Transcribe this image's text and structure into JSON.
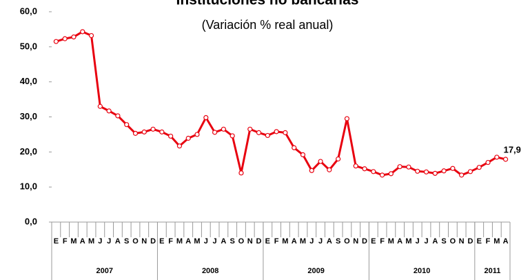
{
  "chart_data": {
    "type": "line",
    "title": "Instituciones no bancarias",
    "subtitle": "(Variación % real anual)",
    "categories": [
      "E",
      "F",
      "M",
      "A",
      "M",
      "J",
      "J",
      "A",
      "S",
      "O",
      "N",
      "D",
      "E",
      "F",
      "M",
      "A",
      "M",
      "J",
      "J",
      "A",
      "S",
      "O",
      "N",
      "D",
      "E",
      "F",
      "M",
      "A",
      "M",
      "J",
      "J",
      "A",
      "S",
      "O",
      "N",
      "D",
      "E",
      "F",
      "M",
      "A",
      "M",
      "J",
      "J",
      "A",
      "S",
      "O",
      "N",
      "D",
      "E",
      "F",
      "M",
      "A"
    ],
    "x_groups": [
      {
        "label": "2007",
        "span": 12
      },
      {
        "label": "2008",
        "span": 12
      },
      {
        "label": "2009",
        "span": 12
      },
      {
        "label": "2010",
        "span": 12
      },
      {
        "label": "2011",
        "span": 4
      }
    ],
    "series": [
      {
        "name": "Instituciones no bancarias",
        "color": "#e8000f",
        "values": [
          51.5,
          52.3,
          52.8,
          54.3,
          53.2,
          33.0,
          31.7,
          30.3,
          27.8,
          25.3,
          25.7,
          26.5,
          25.7,
          24.5,
          21.7,
          23.9,
          25.0,
          29.8,
          25.6,
          26.5,
          24.6,
          14.0,
          26.5,
          25.5,
          24.7,
          25.8,
          25.5,
          21.2,
          19.2,
          14.7,
          17.3,
          14.9,
          18.0,
          29.5,
          16.0,
          15.2,
          14.4,
          13.4,
          13.8,
          15.8,
          15.7,
          14.5,
          14.3,
          13.9,
          14.6,
          15.3,
          13.4,
          14.4,
          15.6,
          17.0,
          18.5,
          17.9
        ],
        "value_labels": [
          null,
          null,
          null,
          null,
          null,
          null,
          null,
          null,
          null,
          null,
          null,
          null,
          null,
          null,
          null,
          null,
          null,
          null,
          null,
          null,
          null,
          null,
          null,
          null,
          null,
          null,
          null,
          null,
          null,
          null,
          null,
          null,
          null,
          null,
          null,
          null,
          null,
          null,
          null,
          null,
          null,
          null,
          null,
          null,
          null,
          null,
          null,
          null,
          null,
          null,
          null,
          "17,9"
        ]
      }
    ],
    "ylim": [
      0,
      60
    ],
    "yticks": [
      {
        "value": 0,
        "label": "0,0"
      },
      {
        "value": 10,
        "label": "10,0"
      },
      {
        "value": 20,
        "label": "20,0"
      },
      {
        "value": 30,
        "label": "30,0"
      },
      {
        "value": 40,
        "label": "40,0"
      },
      {
        "value": 50,
        "label": "50,0"
      },
      {
        "value": 60,
        "label": "60,0"
      }
    ],
    "grid": false
  }
}
